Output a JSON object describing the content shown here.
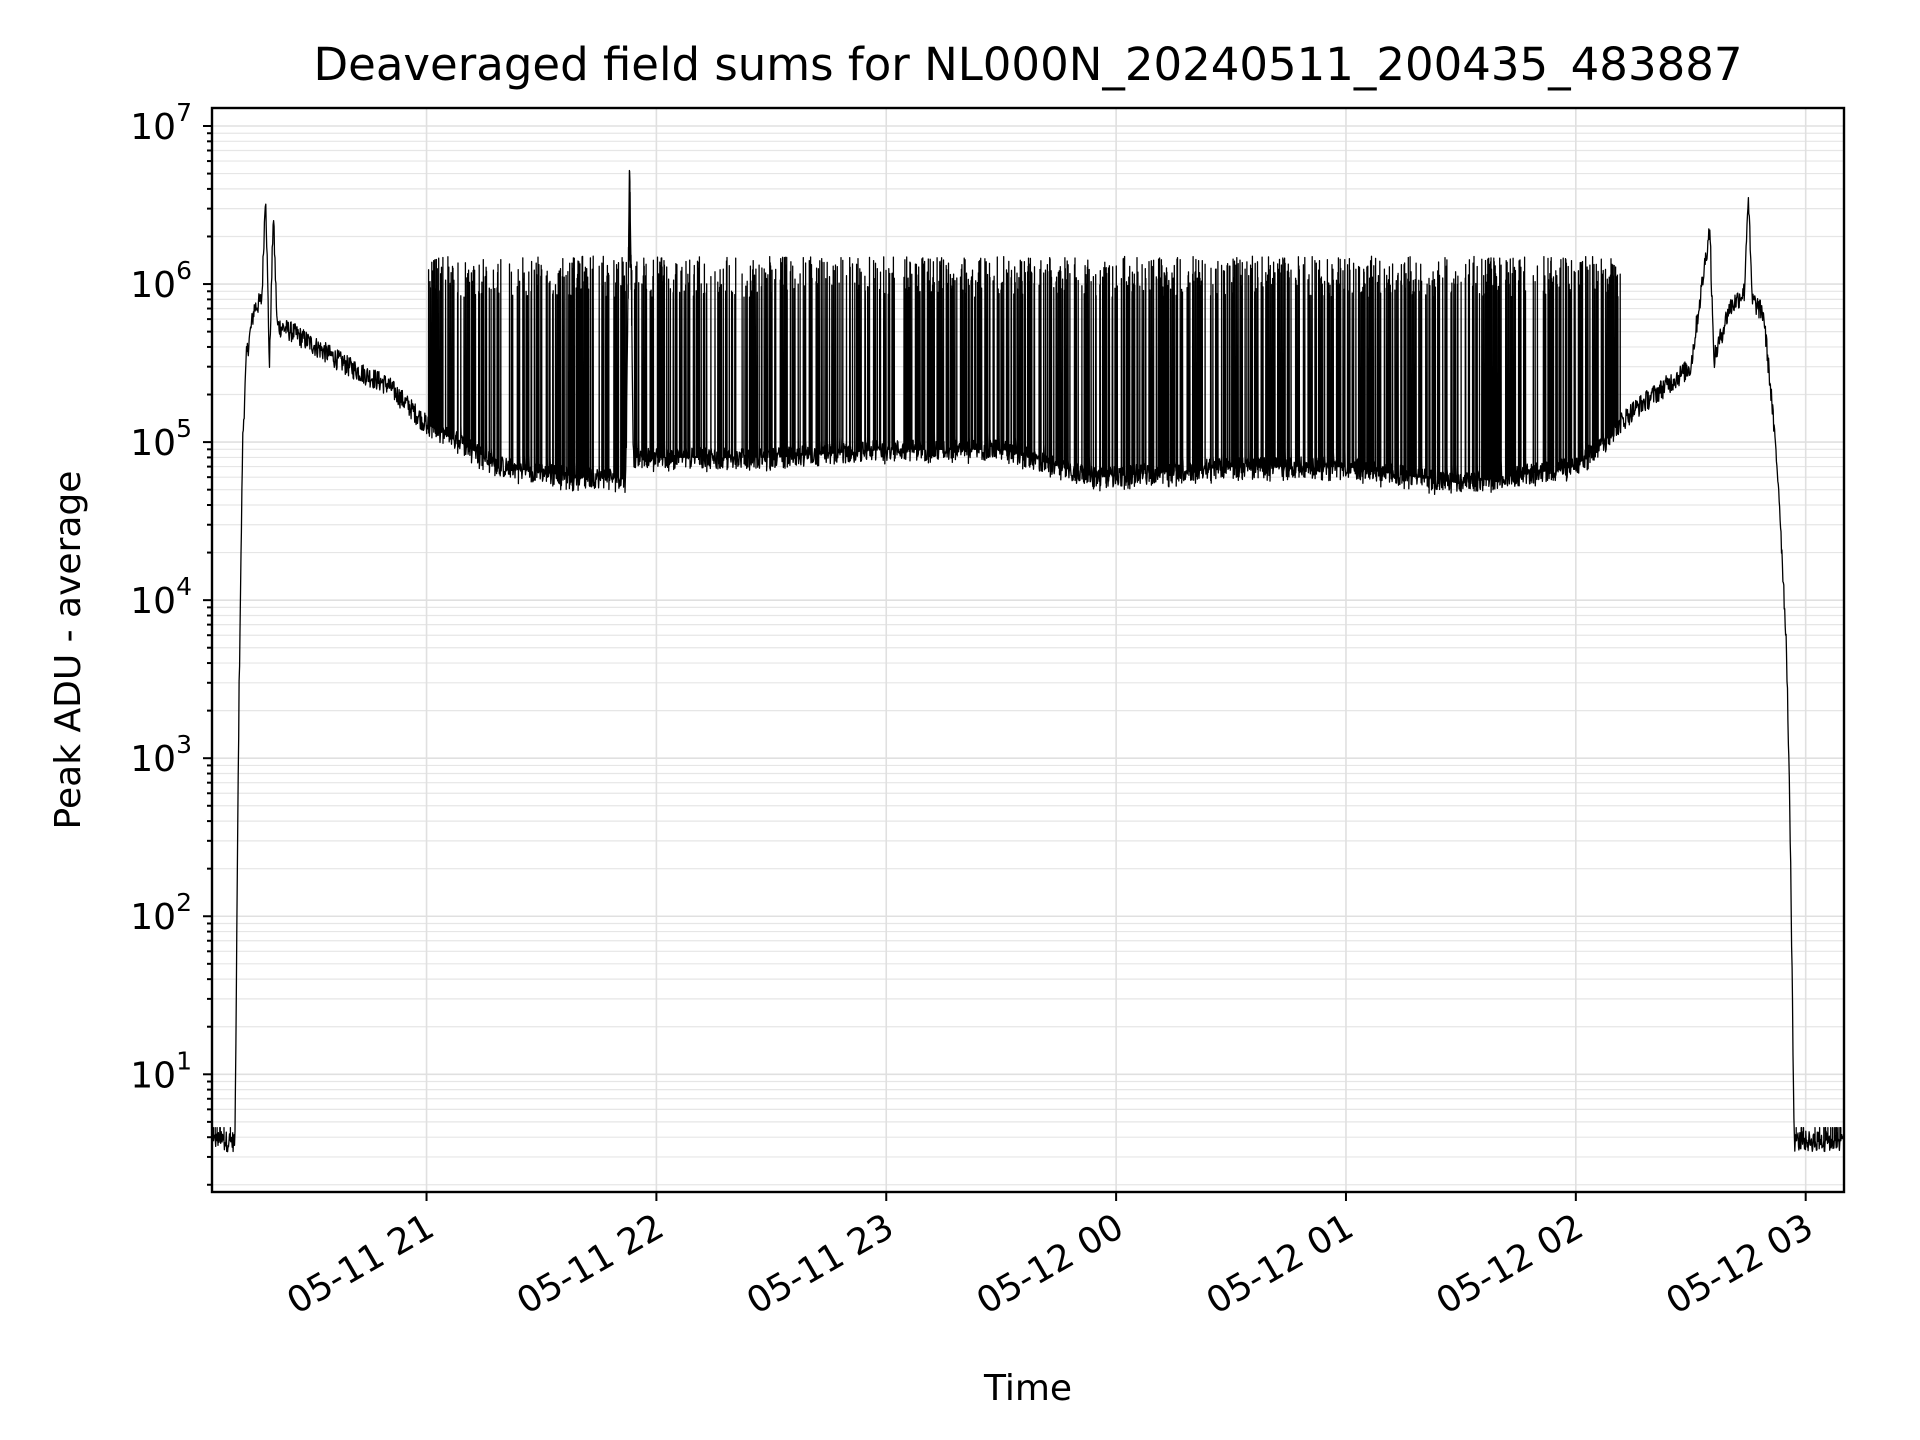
{
  "chart_data": {
    "type": "line",
    "title": "Deaveraged field sums for NL000N_20240511_200435_483887",
    "xlabel": "Time",
    "ylabel": "Peak ADU - average",
    "y_scale": "log",
    "ylim": [
      1.8,
      13000000
    ],
    "y_ticks": [
      {
        "value": 10,
        "base": "10",
        "exp": "1"
      },
      {
        "value": 100,
        "base": "10",
        "exp": "2"
      },
      {
        "value": 1000,
        "base": "10",
        "exp": "3"
      },
      {
        "value": 10000,
        "base": "10",
        "exp": "4"
      },
      {
        "value": 100000,
        "base": "10",
        "exp": "5"
      },
      {
        "value": 1000000,
        "base": "10",
        "exp": "6"
      },
      {
        "value": 10000000,
        "base": "10",
        "exp": "7"
      }
    ],
    "xlim": [
      "2024-05-11 20:04",
      "2024-05-12 03:10"
    ],
    "x_ticks": [
      {
        "value": "2024-05-11 21:00",
        "label": "05-11 21"
      },
      {
        "value": "2024-05-11 22:00",
        "label": "05-11 22"
      },
      {
        "value": "2024-05-11 23:00",
        "label": "05-11 23"
      },
      {
        "value": "2024-05-12 00:00",
        "label": "05-12 00"
      },
      {
        "value": "2024-05-12 01:00",
        "label": "05-12 01"
      },
      {
        "value": "2024-05-12 02:00",
        "label": "05-12 02"
      },
      {
        "value": "2024-05-12 03:00",
        "label": "05-12 03"
      }
    ],
    "grid": true,
    "series": [
      {
        "color": "#000000",
        "points": [
          [
            "2024-05-11 20:04",
            3.8
          ],
          [
            "2024-05-11 20:10",
            3.8
          ],
          [
            "2024-05-11 20:11",
            2000
          ],
          [
            "2024-05-11 20:12",
            100000
          ],
          [
            "2024-05-11 20:13",
            350000
          ],
          [
            "2024-05-11 20:15",
            700000
          ],
          [
            "2024-05-11 20:17",
            800000
          ],
          [
            "2024-05-11 20:18",
            4000000
          ],
          [
            "2024-05-11 20:19",
            300000
          ],
          [
            "2024-05-11 20:20",
            2800000
          ],
          [
            "2024-05-11 20:21",
            550000
          ],
          [
            "2024-05-11 20:25",
            500000
          ],
          [
            "2024-05-11 20:30",
            420000
          ],
          [
            "2024-05-11 20:40",
            300000
          ],
          [
            "2024-05-11 20:50",
            230000
          ],
          [
            "2024-05-11 21:00",
            130000
          ],
          [
            "2024-05-11 21:20",
            70000
          ],
          [
            "2024-05-11 21:40",
            60000
          ],
          [
            "2024-05-11 21:52",
            60000
          ],
          [
            "2024-05-11 21:53",
            6300000
          ],
          [
            "2024-05-11 21:54",
            80000
          ],
          [
            "2024-05-11 22:30",
            80000
          ],
          [
            "2024-05-11 23:00",
            90000
          ],
          [
            "2024-05-11 23:30",
            90000
          ],
          [
            "2024-05-11 23:55",
            60000
          ],
          [
            "2024-05-12 00:30",
            70000
          ],
          [
            "2024-05-12 01:00",
            70000
          ],
          [
            "2024-05-12 01:30",
            55000
          ],
          [
            "2024-05-12 02:00",
            70000
          ],
          [
            "2024-05-12 02:15",
            160000
          ],
          [
            "2024-05-12 02:30",
            300000
          ],
          [
            "2024-05-12 02:35",
            2300000
          ],
          [
            "2024-05-12 02:36",
            330000
          ],
          [
            "2024-05-12 02:40",
            700000
          ],
          [
            "2024-05-12 02:44",
            900000
          ],
          [
            "2024-05-12 02:45",
            3800000
          ],
          [
            "2024-05-12 02:46",
            800000
          ],
          [
            "2024-05-12 02:49",
            650000
          ],
          [
            "2024-05-12 02:51",
            200000
          ],
          [
            "2024-05-12 02:53",
            50000
          ],
          [
            "2024-05-12 02:55",
            5000
          ],
          [
            "2024-05-12 02:56",
            300
          ],
          [
            "2024-05-12 02:57",
            3.8
          ],
          [
            "2024-05-12 03:10",
            3.8
          ]
        ],
        "noise_band": {
          "from": "2024-05-11 21:00",
          "to": "2024-05-12 02:12",
          "upper": 1500000
        }
      }
    ]
  }
}
